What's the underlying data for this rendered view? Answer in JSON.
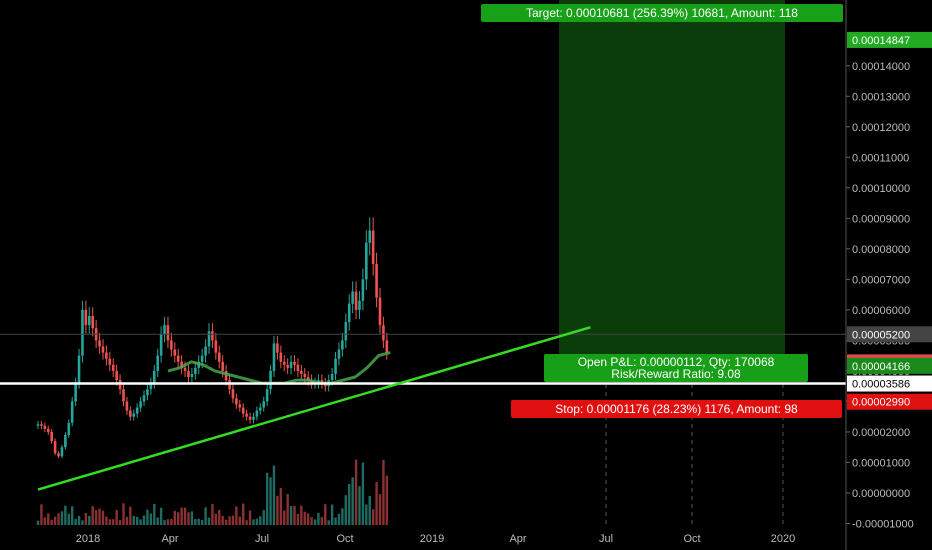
{
  "chart_data": {
    "type": "candlestick",
    "title": "",
    "xlabel": "",
    "ylabel": "",
    "x_ticks": [
      "2018",
      "Apr",
      "Jul",
      "Oct",
      "2019",
      "Apr",
      "Jul",
      "Oct",
      "2020"
    ],
    "y_ticks": [
      "-0.00001000",
      "0.00000000",
      "0.00001000",
      "0.00002000",
      "0.00003000",
      "0.00004000",
      "0.00005000",
      "0.00006000",
      "0.00007000",
      "0.00008000",
      "0.00009000",
      "0.00010000",
      "0.00011000",
      "0.00012000",
      "0.00013000",
      "0.00014000"
    ],
    "ylim": [
      -1.05e-05,
      0.000155
    ],
    "price_labels": [
      {
        "text": "0.00014847",
        "value": 0.00014847,
        "color": "#22aa22"
      },
      {
        "text": "0.00005200",
        "value": 5.2e-05,
        "color": "#444444"
      },
      {
        "text": "0.00004278",
        "value": 4.278e-05,
        "color": "#e34a4a"
      },
      {
        "text": "0.00004166",
        "value": 4.166e-05,
        "color": "#1b8a1b"
      },
      {
        "text": "0.00003586",
        "value": 3.586e-05,
        "color": "#ffffff"
      },
      {
        "text": "0.00002990",
        "value": 2.99e-05,
        "color": "#dd1111"
      }
    ],
    "candles_close": [
      2.25e-05,
      2.2e-05,
      2.1e-05,
      2e-05,
      1.7e-05,
      1.3e-05,
      1.2e-05,
      1.5e-05,
      1.9e-05,
      2.3e-05,
      3e-05,
      3.6e-05,
      4.5e-05,
      6e-05,
      5.5e-05,
      5.8e-05,
      5.4e-05,
      5e-05,
      4.8e-05,
      4.6e-05,
      4.4e-05,
      4.2e-05,
      4e-05,
      3.7e-05,
      3.4e-05,
      3e-05,
      2.7e-05,
      2.5e-05,
      2.6e-05,
      2.8e-05,
      3e-05,
      3.2e-05,
      3.4e-05,
      3.6e-05,
      4e-05,
      4.5e-05,
      5.2e-05,
      5.5e-05,
      5e-05,
      4.7e-05,
      4.5e-05,
      4.3e-05,
      4.1e-05,
      4e-05,
      3.8e-05,
      3.9e-05,
      4.1e-05,
      4.3e-05,
      4.5e-05,
      4.8e-05,
      5.3e-05,
      5e-05,
      4.6e-05,
      4.3e-05,
      4e-05,
      3.7e-05,
      3.4e-05,
      3.1e-05,
      2.9e-05,
      2.8e-05,
      2.6e-05,
      2.5e-05,
      2.4e-05,
      2.5e-05,
      2.7e-05,
      2.8e-05,
      3e-05,
      3.4e-05,
      4e-05,
      4.9e-05,
      4.6e-05,
      4.3e-05,
      4.2e-05,
      4.1e-05,
      4.3e-05,
      4.2e-05,
      4e-05,
      3.9e-05,
      3.8e-05,
      3.7e-05,
      3.6e-05,
      3.6e-05,
      3.7e-05,
      3.6e-05,
      3.5e-05,
      3.7e-05,
      3.9e-05,
      4.4e-05,
      4.7e-05,
      5e-05,
      5.6e-05,
      6.2e-05,
      6.6e-05,
      6e-05,
      6.3e-05,
      7e-05,
      8.2e-05,
      8.6e-05,
      7.5e-05,
      6.4e-05,
      5.5e-05,
      5e-05,
      4.6e-05
    ],
    "moving_average": [
      4e-05,
      4.1e-05,
      4.3e-05,
      4.2e-05,
      4e-05,
      3.9e-05,
      3.8e-05,
      3.7e-05,
      3.6e-05,
      3.6e-05,
      3.6e-05,
      3.7e-05,
      3.7e-05,
      3.6e-05,
      3.6e-05,
      3.7e-05,
      3.8e-05,
      4.1e-05,
      4.5e-05,
      4.6e-05
    ],
    "moving_average_start": 38,
    "volume_max": 2.1e-05,
    "trendline": {
      "start": [
        0,
        1.1e-06
      ],
      "end": [
        158,
        5.43e-05
      ]
    },
    "horizontal_line_value": 3.586e-05,
    "entry_line_value": 5.2e-05,
    "position": {
      "entry": 4.166e-05,
      "target": 0.00014847,
      "stop": 2.99e-05,
      "start_index": 98,
      "end_index": 148,
      "target_label": "Target: 0.00010681 (256.39%) 10681, Amount: 118",
      "stop_label": "Stop: 0.00001176 (28.23%) 1176, Amount: 98",
      "pnl_label": "Open P&L: 0.00000112, Qty: 170068",
      "rr_label": "Risk/Reward Ratio: 9.08"
    },
    "colors": {
      "up": "#26a69a",
      "down": "#ef5350",
      "ma": "#4caf50",
      "trend": "#33dd22",
      "target_zone": "#0a3d0a",
      "stop": "#e01010",
      "target": "#18a018"
    }
  }
}
